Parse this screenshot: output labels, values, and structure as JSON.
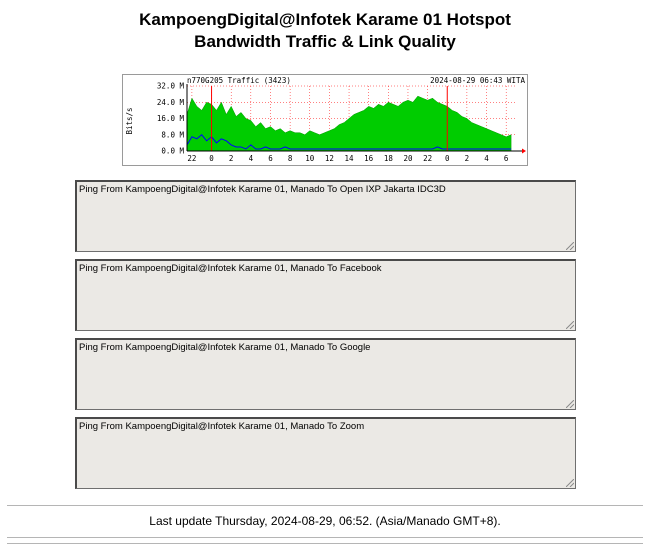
{
  "header": {
    "title_line1": "KampoengDigital@Infotek Karame 01 Hotspot",
    "title_line2": "Bandwidth Traffic & Link Quality"
  },
  "chart_data": {
    "type": "area",
    "title": "n770G205 Traffic (3423)",
    "timestamp": "2024-08-29 06:43 WITA",
    "ylabel": "Bits/s",
    "ylim": [
      0,
      32
    ],
    "y_unit": "M",
    "y_ticks": [
      "0.0 M",
      "8.0 M",
      "16.0 M",
      "24.0 M",
      "32.0 M"
    ],
    "x_ticks": [
      "22",
      "0",
      "2",
      "4",
      "6",
      "8",
      "10",
      "12",
      "14",
      "16",
      "18",
      "20",
      "22",
      "0",
      "2",
      "4",
      "6"
    ],
    "x_hours": [
      -2,
      0,
      2,
      4,
      6,
      8,
      10,
      12,
      14,
      16,
      18,
      20,
      22,
      24,
      26,
      28,
      30
    ],
    "day_markers": [
      0,
      24
    ],
    "series": [
      {
        "name": "in",
        "color": "#00cc00",
        "x": [
          -2.5,
          -2,
          -1.5,
          -1,
          -0.5,
          0,
          0.5,
          1,
          1.5,
          2,
          2.5,
          3,
          3.5,
          4,
          4.5,
          5,
          5.5,
          6,
          6.5,
          7,
          7.5,
          8,
          8.5,
          9,
          9.5,
          10,
          10.5,
          11,
          11.5,
          12,
          12.5,
          13,
          13.5,
          14,
          14.5,
          15,
          15.5,
          16,
          16.5,
          17,
          17.5,
          18,
          18.5,
          19,
          19.5,
          20,
          20.5,
          21,
          21.5,
          22,
          22.5,
          23,
          23.5,
          24,
          24.5,
          25,
          25.5,
          26,
          26.5,
          27,
          27.5,
          28,
          28.5,
          29,
          29.5,
          30,
          30.5
        ],
        "values": [
          18,
          26,
          22,
          20,
          24,
          23,
          20,
          24,
          18,
          22,
          17,
          19,
          16,
          15,
          12,
          14,
          11,
          12,
          10,
          11,
          9,
          10,
          9,
          9,
          8,
          10,
          9,
          8,
          9,
          10,
          11,
          13,
          14,
          16,
          18,
          19,
          20,
          22,
          21,
          23,
          22,
          24,
          23,
          22,
          24,
          25,
          24,
          27,
          26,
          25,
          26,
          24,
          23,
          22,
          20,
          19,
          17,
          16,
          14,
          13,
          12,
          11,
          10,
          9,
          8,
          7,
          8
        ]
      },
      {
        "name": "out",
        "color": "#0000ff",
        "x": [
          -2.5,
          -2,
          -1.5,
          -1,
          -0.5,
          0,
          0.5,
          1,
          1.5,
          2,
          2.5,
          3,
          3.5,
          4,
          4.5,
          5,
          5.5,
          6,
          6.5,
          7,
          7.5,
          8,
          8.5,
          9,
          9.5,
          10,
          10.5,
          11,
          11.5,
          12,
          12.5,
          13,
          13.5,
          14,
          14.5,
          15,
          15.5,
          16,
          16.5,
          17,
          17.5,
          18,
          18.5,
          19,
          19.5,
          20,
          20.5,
          21,
          21.5,
          22,
          22.5,
          23,
          23.5,
          24,
          24.5,
          25,
          25.5,
          26,
          26.5,
          27,
          27.5,
          28,
          28.5,
          29,
          29.5,
          30,
          30.5
        ],
        "values": [
          3,
          7,
          6,
          8,
          5,
          7,
          4,
          6,
          5,
          3,
          2,
          2,
          1,
          3,
          1,
          1,
          2,
          1,
          1,
          1,
          2,
          1,
          1,
          1,
          1,
          1,
          1,
          1,
          1,
          1,
          1,
          1,
          1,
          1,
          1,
          1,
          1,
          1,
          1,
          1,
          1,
          1,
          1,
          1,
          1,
          1,
          1,
          1,
          1,
          1,
          1,
          2,
          1,
          1,
          1,
          1,
          1,
          1,
          1,
          1,
          1,
          1,
          1,
          1,
          1,
          1,
          1
        ]
      }
    ],
    "colors": {
      "grid": "#ff0000",
      "axis": "#000000",
      "marker": "#ff0000"
    }
  },
  "ping_panels": [
    {
      "label": "Ping From KampoengDigital@Infotek Karame 01, Manado To Open IXP Jakarta IDC3D"
    },
    {
      "label": "Ping From KampoengDigital@Infotek Karame 01, Manado To Facebook"
    },
    {
      "label": "Ping From KampoengDigital@Infotek Karame 01, Manado To Google"
    },
    {
      "label": "Ping From KampoengDigital@Infotek Karame 01, Manado To Zoom"
    }
  ],
  "footer": {
    "last_update": "Last update Thursday, 2024-08-29, 06:52. (Asia/Manado GMT+8)."
  }
}
